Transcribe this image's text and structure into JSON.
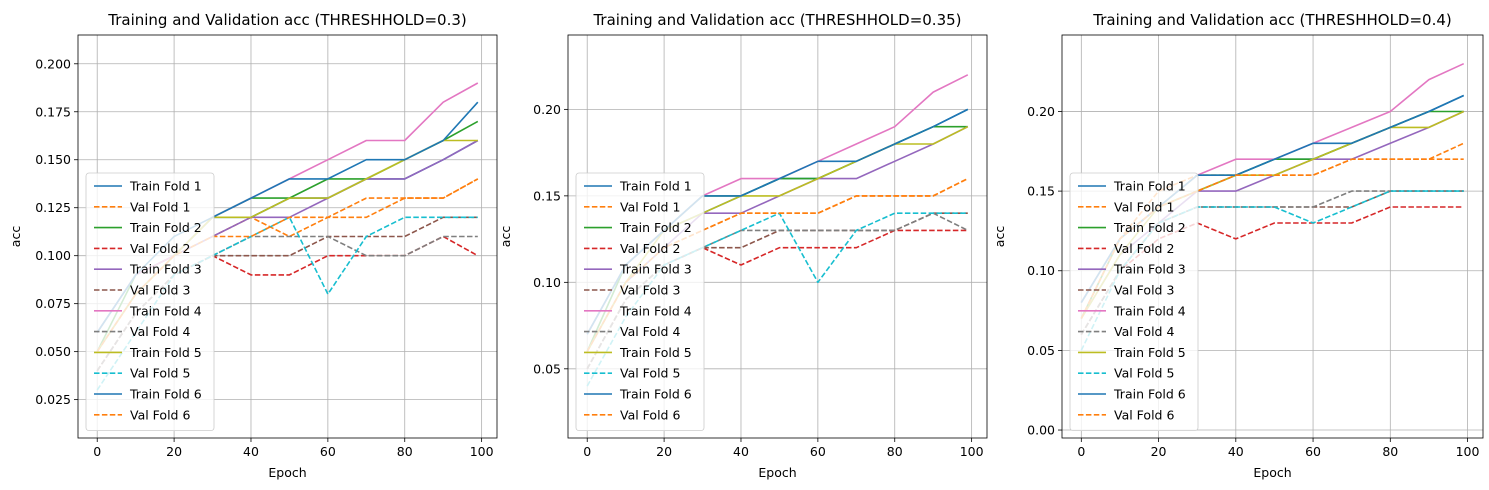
{
  "chart_data": [
    {
      "type": "line",
      "title": "Training and Validation acc (THRESHHOLD=0.3)",
      "xlabel": "Epoch",
      "ylabel": "acc",
      "xlim": [
        -5,
        104
      ],
      "ylim": [
        0.005,
        0.215
      ],
      "xticks": [
        0,
        20,
        40,
        60,
        80,
        100
      ],
      "yticks": [
        0.025,
        0.05,
        0.075,
        0.1,
        0.125,
        0.15,
        0.175,
        0.2
      ],
      "ytick_labels": [
        "0.025",
        "0.050",
        "0.075",
        "0.100",
        "0.125",
        "0.150",
        "0.175",
        "0.200"
      ],
      "grid": true,
      "legend_position": "lower-left",
      "x": [
        0,
        10,
        20,
        30,
        40,
        50,
        60,
        70,
        80,
        90,
        99
      ],
      "series": [
        {
          "name": "Train Fold 1",
          "color": "#1f77b4",
          "dash": "solid",
          "values": [
            0.06,
            0.09,
            0.1,
            0.12,
            0.12,
            0.13,
            0.13,
            0.14,
            0.14,
            0.15,
            0.16
          ]
        },
        {
          "name": "Val Fold 1",
          "color": "#ff7f0e",
          "dash": "dashed",
          "values": [
            0.05,
            0.08,
            0.1,
            0.11,
            0.12,
            0.11,
            0.12,
            0.12,
            0.13,
            0.13,
            0.14
          ]
        },
        {
          "name": "Train Fold 2",
          "color": "#2ca02c",
          "dash": "solid",
          "values": [
            0.05,
            0.09,
            0.1,
            0.12,
            0.13,
            0.13,
            0.14,
            0.14,
            0.15,
            0.16,
            0.17
          ]
        },
        {
          "name": "Val Fold 2",
          "color": "#d62728",
          "dash": "dashed",
          "values": [
            0.04,
            0.07,
            0.09,
            0.1,
            0.09,
            0.09,
            0.1,
            0.1,
            0.1,
            0.11,
            0.1
          ]
        },
        {
          "name": "Train Fold 3",
          "color": "#9467bd",
          "dash": "solid",
          "values": [
            0.05,
            0.08,
            0.1,
            0.11,
            0.12,
            0.12,
            0.13,
            0.14,
            0.14,
            0.15,
            0.16
          ]
        },
        {
          "name": "Val Fold 3",
          "color": "#8c564b",
          "dash": "dashed",
          "values": [
            0.04,
            0.07,
            0.09,
            0.1,
            0.1,
            0.1,
            0.11,
            0.11,
            0.11,
            0.12,
            0.12
          ]
        },
        {
          "name": "Train Fold 4",
          "color": "#e377c2",
          "dash": "solid",
          "values": [
            0.06,
            0.09,
            0.1,
            0.12,
            0.13,
            0.14,
            0.15,
            0.16,
            0.16,
            0.18,
            0.19
          ]
        },
        {
          "name": "Val Fold 4",
          "color": "#7f7f7f",
          "dash": "dashed",
          "values": [
            0.04,
            0.07,
            0.09,
            0.1,
            0.11,
            0.11,
            0.11,
            0.1,
            0.1,
            0.11,
            0.11
          ]
        },
        {
          "name": "Train Fold 5",
          "color": "#bcbd22",
          "dash": "solid",
          "values": [
            0.05,
            0.08,
            0.1,
            0.12,
            0.12,
            0.13,
            0.13,
            0.14,
            0.15,
            0.16,
            0.16
          ]
        },
        {
          "name": "Val Fold 5",
          "color": "#17becf",
          "dash": "dashed",
          "values": [
            0.03,
            0.06,
            0.09,
            0.1,
            0.11,
            0.12,
            0.08,
            0.11,
            0.12,
            0.12,
            0.12
          ]
        },
        {
          "name": "Train Fold 6",
          "color": "#1f77b4",
          "dash": "solid",
          "values": [
            0.06,
            0.09,
            0.11,
            0.12,
            0.13,
            0.14,
            0.14,
            0.15,
            0.15,
            0.16,
            0.18
          ]
        },
        {
          "name": "Val Fold 6",
          "color": "#ff7f0e",
          "dash": "dashed",
          "values": [
            0.05,
            0.08,
            0.1,
            0.11,
            0.11,
            0.12,
            0.12,
            0.13,
            0.13,
            0.13,
            0.14
          ]
        }
      ]
    },
    {
      "type": "line",
      "title": "Training and Validation acc (THRESHHOLD=0.35)",
      "xlabel": "Epoch",
      "ylabel": "acc",
      "xlim": [
        -5,
        104
      ],
      "ylim": [
        0.01,
        0.243
      ],
      "xticks": [
        0,
        20,
        40,
        60,
        80,
        100
      ],
      "yticks": [
        0.05,
        0.1,
        0.15,
        0.2
      ],
      "ytick_labels": [
        "0.05",
        "0.10",
        "0.15",
        "0.20"
      ],
      "grid": true,
      "legend_position": "lower-left",
      "x": [
        0,
        10,
        20,
        30,
        40,
        50,
        60,
        70,
        80,
        90,
        99
      ],
      "series": [
        {
          "name": "Train Fold 1",
          "color": "#1f77b4",
          "dash": "solid",
          "values": [
            0.07,
            0.11,
            0.13,
            0.14,
            0.15,
            0.16,
            0.16,
            0.17,
            0.18,
            0.19,
            0.2
          ]
        },
        {
          "name": "Val Fold 1",
          "color": "#ff7f0e",
          "dash": "dashed",
          "values": [
            0.06,
            0.1,
            0.12,
            0.13,
            0.14,
            0.14,
            0.14,
            0.15,
            0.15,
            0.15,
            0.16
          ]
        },
        {
          "name": "Train Fold 2",
          "color": "#2ca02c",
          "dash": "solid",
          "values": [
            0.06,
            0.11,
            0.13,
            0.15,
            0.15,
            0.16,
            0.16,
            0.17,
            0.18,
            0.19,
            0.19
          ]
        },
        {
          "name": "Val Fold 2",
          "color": "#d62728",
          "dash": "dashed",
          "values": [
            0.05,
            0.09,
            0.11,
            0.12,
            0.11,
            0.12,
            0.12,
            0.12,
            0.13,
            0.13,
            0.13
          ]
        },
        {
          "name": "Train Fold 3",
          "color": "#9467bd",
          "dash": "solid",
          "values": [
            0.06,
            0.1,
            0.12,
            0.14,
            0.14,
            0.15,
            0.16,
            0.16,
            0.17,
            0.18,
            0.19
          ]
        },
        {
          "name": "Val Fold 3",
          "color": "#8c564b",
          "dash": "dashed",
          "values": [
            0.05,
            0.09,
            0.11,
            0.12,
            0.12,
            0.13,
            0.13,
            0.13,
            0.13,
            0.14,
            0.14
          ]
        },
        {
          "name": "Train Fold 4",
          "color": "#e377c2",
          "dash": "solid",
          "values": [
            0.07,
            0.11,
            0.13,
            0.15,
            0.16,
            0.16,
            0.17,
            0.18,
            0.19,
            0.21,
            0.22
          ]
        },
        {
          "name": "Val Fold 4",
          "color": "#7f7f7f",
          "dash": "dashed",
          "values": [
            0.05,
            0.09,
            0.11,
            0.12,
            0.13,
            0.13,
            0.13,
            0.13,
            0.13,
            0.14,
            0.13
          ]
        },
        {
          "name": "Train Fold 5",
          "color": "#bcbd22",
          "dash": "solid",
          "values": [
            0.06,
            0.1,
            0.13,
            0.14,
            0.15,
            0.15,
            0.16,
            0.17,
            0.18,
            0.18,
            0.19
          ]
        },
        {
          "name": "Val Fold 5",
          "color": "#17becf",
          "dash": "dashed",
          "values": [
            0.04,
            0.08,
            0.11,
            0.12,
            0.13,
            0.14,
            0.1,
            0.13,
            0.14,
            0.14,
            0.14
          ]
        },
        {
          "name": "Train Fold 6",
          "color": "#1f77b4",
          "dash": "solid",
          "values": [
            0.07,
            0.11,
            0.13,
            0.15,
            0.15,
            0.16,
            0.17,
            0.17,
            0.18,
            0.19,
            0.2
          ]
        },
        {
          "name": "Val Fold 6",
          "color": "#ff7f0e",
          "dash": "dashed",
          "values": [
            0.06,
            0.1,
            0.12,
            0.13,
            0.14,
            0.14,
            0.14,
            0.15,
            0.15,
            0.15,
            0.16
          ]
        }
      ]
    },
    {
      "type": "line",
      "title": "Training and Validation acc (THRESHHOLD=0.4)",
      "xlabel": "Epoch",
      "ylabel": "acc",
      "xlim": [
        -5,
        104
      ],
      "ylim": [
        -0.005,
        0.248
      ],
      "xticks": [
        0,
        20,
        40,
        60,
        80,
        100
      ],
      "yticks": [
        0.0,
        0.05,
        0.1,
        0.15,
        0.2
      ],
      "ytick_labels": [
        "0.00",
        "0.05",
        "0.10",
        "0.15",
        "0.20"
      ],
      "grid": true,
      "legend_position": "lower-left",
      "x": [
        0,
        10,
        20,
        30,
        40,
        50,
        60,
        70,
        80,
        90,
        99
      ],
      "series": [
        {
          "name": "Train Fold 1",
          "color": "#1f77b4",
          "dash": "solid",
          "values": [
            0.08,
            0.12,
            0.14,
            0.15,
            0.16,
            0.17,
            0.17,
            0.18,
            0.19,
            0.2,
            0.21
          ]
        },
        {
          "name": "Val Fold 1",
          "color": "#ff7f0e",
          "dash": "dashed",
          "values": [
            0.07,
            0.12,
            0.15,
            0.16,
            0.16,
            0.16,
            0.16,
            0.17,
            0.17,
            0.17,
            0.17
          ]
        },
        {
          "name": "Train Fold 2",
          "color": "#2ca02c",
          "dash": "solid",
          "values": [
            0.07,
            0.12,
            0.14,
            0.16,
            0.16,
            0.17,
            0.17,
            0.18,
            0.19,
            0.2,
            0.2
          ]
        },
        {
          "name": "Val Fold 2",
          "color": "#d62728",
          "dash": "dashed",
          "values": [
            0.06,
            0.1,
            0.12,
            0.13,
            0.12,
            0.13,
            0.13,
            0.13,
            0.14,
            0.14,
            0.14
          ]
        },
        {
          "name": "Train Fold 3",
          "color": "#9467bd",
          "dash": "solid",
          "values": [
            0.07,
            0.11,
            0.13,
            0.15,
            0.15,
            0.16,
            0.17,
            0.17,
            0.18,
            0.19,
            0.2
          ]
        },
        {
          "name": "Val Fold 3",
          "color": "#8c564b",
          "dash": "dashed",
          "values": [
            0.06,
            0.1,
            0.13,
            0.14,
            0.14,
            0.14,
            0.14,
            0.14,
            0.15,
            0.15,
            0.15
          ]
        },
        {
          "name": "Train Fold 4",
          "color": "#e377c2",
          "dash": "solid",
          "values": [
            0.08,
            0.12,
            0.14,
            0.16,
            0.17,
            0.17,
            0.18,
            0.19,
            0.2,
            0.22,
            0.23
          ]
        },
        {
          "name": "Val Fold 4",
          "color": "#7f7f7f",
          "dash": "dashed",
          "values": [
            0.06,
            0.1,
            0.13,
            0.14,
            0.14,
            0.14,
            0.14,
            0.15,
            0.15,
            0.15,
            0.15
          ]
        },
        {
          "name": "Train Fold 5",
          "color": "#bcbd22",
          "dash": "solid",
          "values": [
            0.07,
            0.11,
            0.14,
            0.15,
            0.16,
            0.16,
            0.17,
            0.18,
            0.19,
            0.19,
            0.2
          ]
        },
        {
          "name": "Val Fold 5",
          "color": "#17becf",
          "dash": "dashed",
          "values": [
            0.05,
            0.1,
            0.13,
            0.14,
            0.14,
            0.14,
            0.13,
            0.14,
            0.15,
            0.15,
            0.15
          ]
        },
        {
          "name": "Train Fold 6",
          "color": "#1f77b4",
          "dash": "solid",
          "values": [
            0.08,
            0.12,
            0.14,
            0.16,
            0.16,
            0.17,
            0.18,
            0.18,
            0.19,
            0.2,
            0.21
          ]
        },
        {
          "name": "Val Fold 6",
          "color": "#ff7f0e",
          "dash": "dashed",
          "values": [
            0.07,
            0.12,
            0.14,
            0.15,
            0.16,
            0.16,
            0.16,
            0.17,
            0.17,
            0.17,
            0.18
          ]
        }
      ]
    }
  ]
}
